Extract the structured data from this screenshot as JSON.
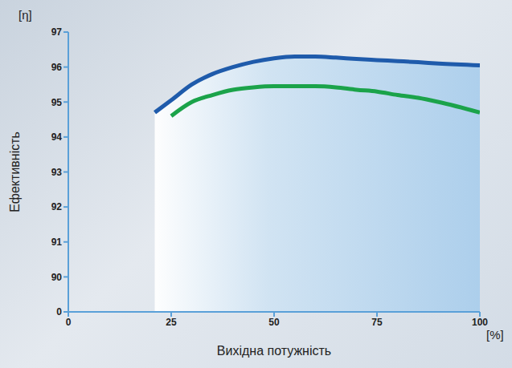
{
  "chart_data": {
    "type": "line",
    "x_label": "Вихідна потужність",
    "y_label": "Ефективність",
    "y_unit": "[η]",
    "x_unit": "[%]",
    "x": [
      21,
      25,
      30,
      35,
      40,
      45,
      50,
      55,
      60,
      65,
      70,
      75,
      80,
      85,
      90,
      100
    ],
    "series": [
      {
        "type": "area",
        "color": "#1f5bab",
        "values": [
          94.7,
          95.05,
          95.5,
          95.8,
          96.0,
          96.15,
          96.25,
          96.3,
          96.3,
          96.27,
          96.23,
          96.2,
          96.17,
          96.14,
          96.1,
          96.05
        ]
      },
      {
        "type": "line",
        "color": "#1ba34a",
        "values": [
          null,
          94.6,
          95.0,
          95.2,
          95.35,
          95.42,
          95.45,
          95.45,
          95.45,
          95.42,
          95.35,
          95.3,
          95.2,
          95.12,
          95.0,
          94.7
        ]
      }
    ],
    "xlim": [
      0,
      100
    ],
    "xticks": [
      0,
      25,
      50,
      75,
      100
    ],
    "ylim": [
      0,
      97
    ],
    "yticks": [
      0,
      90,
      91,
      92,
      93,
      94,
      95,
      96,
      97
    ],
    "grid": false
  }
}
